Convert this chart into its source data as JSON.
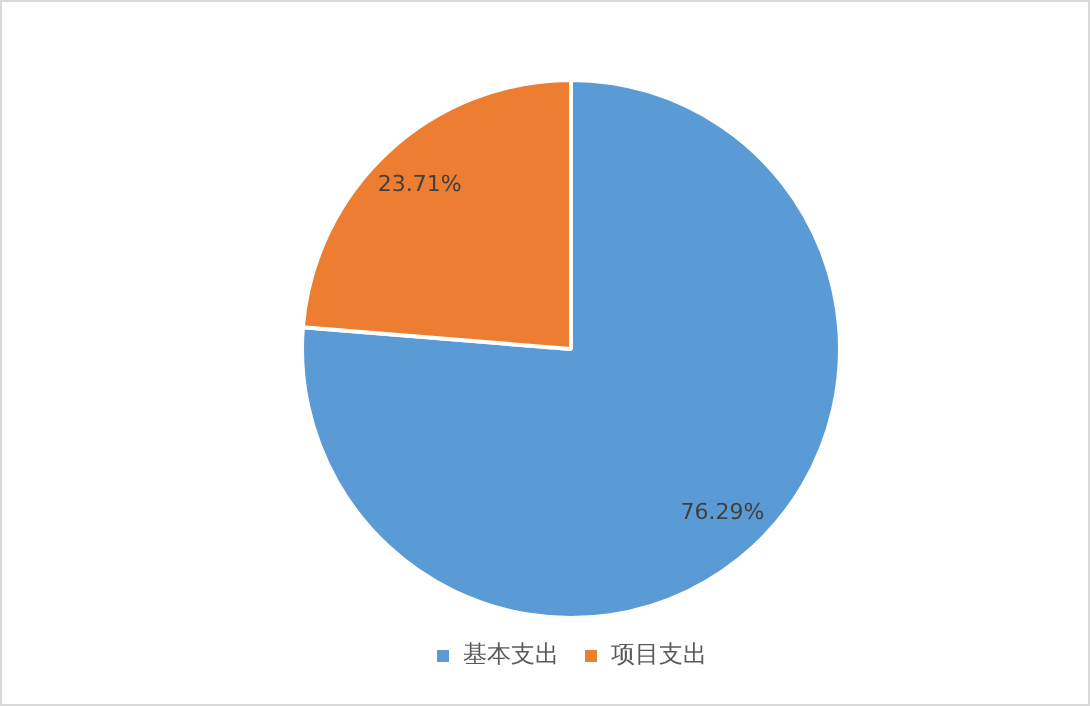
{
  "chart_data": {
    "type": "pie",
    "categories": [
      "基本支出",
      "项目支出"
    ],
    "values": [
      76.29,
      23.71
    ],
    "colors": [
      "#5b9bd5",
      "#ed7d31"
    ],
    "value_labels": [
      "76.29%",
      "23.71%"
    ],
    "legend": "bottom"
  }
}
